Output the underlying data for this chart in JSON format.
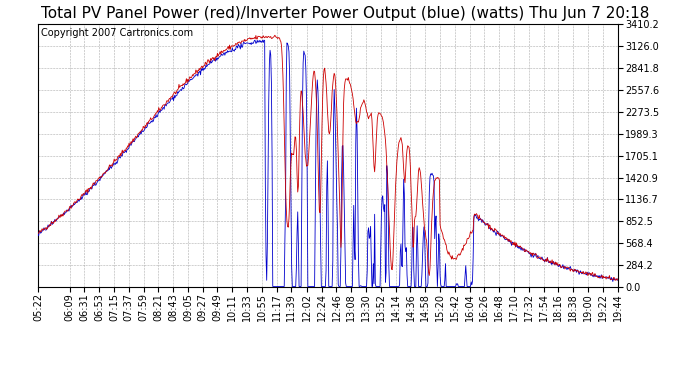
{
  "title": "Total PV Panel Power (red)/Inverter Power Output (blue) (watts) Thu Jun 7 20:18",
  "copyright": "Copyright 2007 Cartronics.com",
  "ymin": 0.0,
  "ymax": 3410.2,
  "yticks": [
    0.0,
    284.2,
    568.4,
    852.5,
    1136.7,
    1420.9,
    1705.1,
    1989.3,
    2273.5,
    2557.6,
    2841.8,
    3126.0,
    3410.2
  ],
  "bg_color": "#ffffff",
  "plot_bg_color": "#ffffff",
  "grid_color": "#999999",
  "pv_color": "#cc0000",
  "inv_color": "#0000cc",
  "title_fontsize": 11,
  "copyright_fontsize": 7,
  "tick_fontsize": 7,
  "xtick_labels": [
    "05:22",
    "06:09",
    "06:31",
    "06:53",
    "07:15",
    "07:37",
    "07:59",
    "08:21",
    "08:43",
    "09:05",
    "09:27",
    "09:49",
    "10:11",
    "10:33",
    "10:55",
    "11:17",
    "11:39",
    "12:02",
    "12:24",
    "12:46",
    "13:08",
    "13:30",
    "13:52",
    "14:14",
    "14:36",
    "14:58",
    "15:20",
    "15:42",
    "16:04",
    "16:26",
    "16:48",
    "17:10",
    "17:32",
    "17:54",
    "18:16",
    "18:38",
    "19:00",
    "19:22",
    "19:44"
  ]
}
